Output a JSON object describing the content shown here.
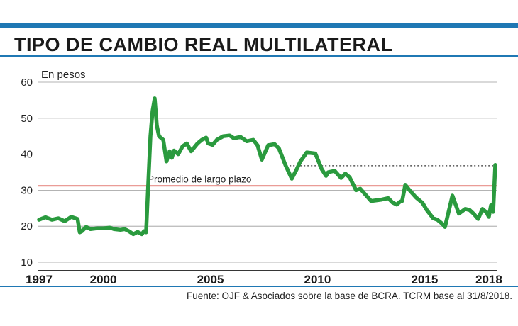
{
  "header": {
    "title": "TIPO DE CAMBIO REAL MULTILATERAL",
    "accent_color": "#1f78b4"
  },
  "footer": {
    "source": "Fuente: OJF & Asociados sobre la base de BCRA. TCRM base al 31/8/2018."
  },
  "chart_data": {
    "type": "line",
    "title": "TIPO DE CAMBIO REAL MULTILATERAL",
    "ylabel": "En pesos",
    "xlabel": "",
    "ylim": [
      10,
      60
    ],
    "xlim": [
      1997,
      2018.3
    ],
    "yticks": [
      10,
      20,
      30,
      40,
      50,
      60
    ],
    "xticks": [
      "1997",
      "2000",
      "2005",
      "2010",
      "2015",
      "2018"
    ],
    "grid": true,
    "reference_line": {
      "label": "Promedio de largo plazo",
      "value": 31.2,
      "color": "#d63a2f"
    },
    "projection_line": {
      "from_year": 2008.7,
      "value": 36.8,
      "style": "dotted"
    },
    "series": [
      {
        "color": "#2a9a3e",
        "x": [
          1997.0,
          1997.3,
          1997.6,
          1997.9,
          1998.2,
          1998.5,
          1998.8,
          1998.9,
          1999.0,
          1999.2,
          1999.4,
          1999.7,
          2000.0,
          2000.3,
          2000.5,
          2000.8,
          2001.0,
          2001.2,
          2001.4,
          2001.6,
          2001.8,
          2001.9,
          2002.0,
          2002.1,
          2002.2,
          2002.3,
          2002.4,
          2002.5,
          2002.6,
          2002.8,
          2002.95,
          2003.1,
          2003.2,
          2003.3,
          2003.5,
          2003.7,
          2003.9,
          2004.1,
          2004.4,
          2004.6,
          2004.8,
          2004.9,
          2005.1,
          2005.3,
          2005.6,
          2005.9,
          2006.1,
          2006.4,
          2006.7,
          2007.0,
          2007.2,
          2007.4,
          2007.7,
          2008.0,
          2008.2,
          2008.5,
          2008.8,
          2009.0,
          2009.2,
          2009.5,
          2009.9,
          2010.2,
          2010.4,
          2010.5,
          2010.8,
          2011.1,
          2011.3,
          2011.5,
          2011.8,
          2012.0,
          2012.5,
          2013.0,
          2013.3,
          2013.5,
          2013.7,
          2013.85,
          2013.95,
          2014.1,
          2014.3,
          2014.6,
          2014.9,
          2015.1,
          2015.4,
          2015.6,
          2015.8,
          2015.95,
          2016.1,
          2016.3,
          2016.6,
          2016.9,
          2017.1,
          2017.3,
          2017.5,
          2017.7,
          2017.9,
          2018.0,
          2018.1,
          2018.2,
          2018.3
        ],
        "values": [
          21.8,
          22.5,
          21.8,
          22.2,
          21.4,
          22.6,
          22.0,
          18.3,
          18.6,
          19.8,
          19.2,
          19.4,
          19.4,
          19.6,
          19.2,
          19.0,
          19.2,
          18.6,
          17.8,
          18.4,
          17.8,
          18.6,
          18.3,
          32.0,
          45.0,
          52.0,
          55.5,
          48.0,
          45.0,
          44.0,
          38.0,
          40.8,
          39.0,
          41.0,
          40.0,
          42.2,
          43.0,
          40.8,
          43.0,
          44.0,
          44.6,
          43.0,
          42.6,
          44.0,
          45.0,
          45.2,
          44.4,
          44.8,
          43.6,
          44.0,
          42.5,
          38.5,
          42.5,
          42.8,
          41.6,
          37.0,
          33.2,
          35.5,
          38.0,
          40.5,
          40.2,
          35.8,
          34.0,
          35.0,
          35.4,
          33.4,
          34.6,
          33.6,
          30.0,
          30.4,
          27.0,
          27.4,
          27.8,
          26.6,
          26.0,
          26.8,
          27.0,
          31.5,
          30.0,
          28.0,
          26.5,
          24.5,
          22.2,
          21.8,
          20.8,
          19.8,
          23.5,
          28.5,
          23.5,
          24.8,
          24.5,
          23.4,
          22.0,
          24.8,
          23.8,
          22.6,
          25.8,
          24.0,
          37.0
        ]
      }
    ]
  }
}
